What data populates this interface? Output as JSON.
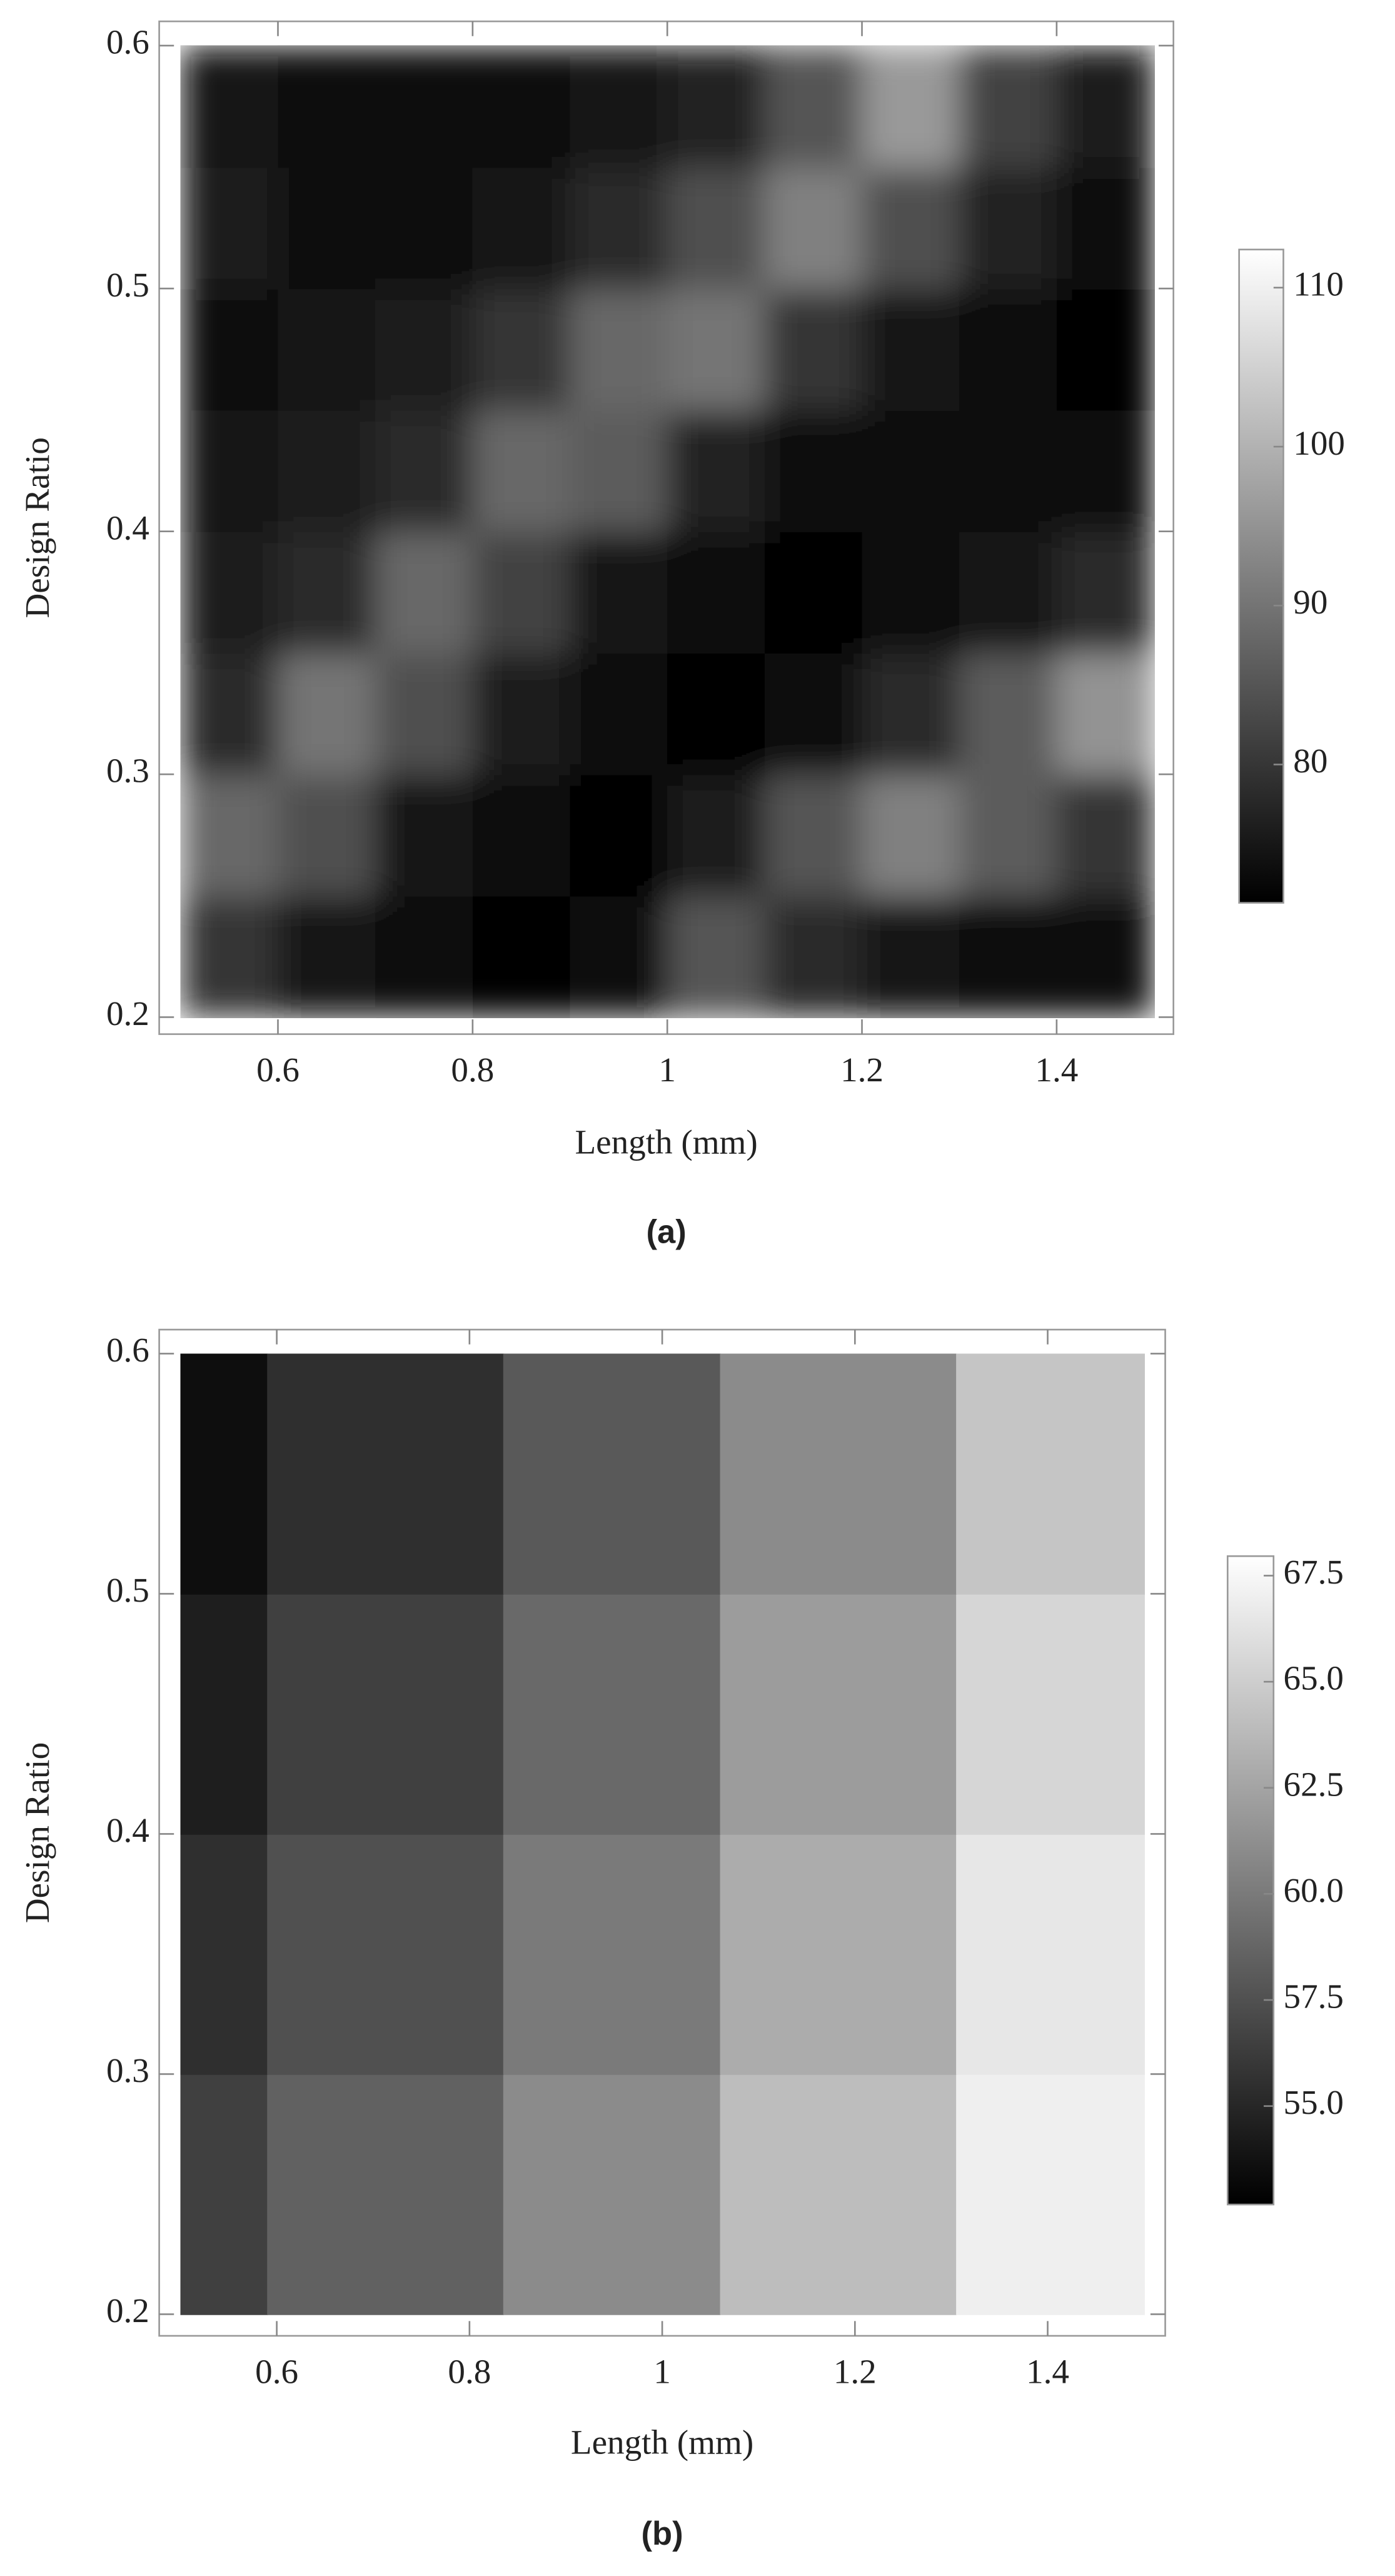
{
  "chart_data": [
    {
      "type": "heatmap",
      "colormap": "gray",
      "caption": "(a)",
      "xlabel": "Length (mm)",
      "ylabel": "Design Ratio",
      "xlim": [
        0.478,
        1.52
      ],
      "ylim": [
        0.193,
        0.61
      ],
      "xticks": [
        0.6,
        0.8,
        1,
        1.2,
        1.4
      ],
      "yticks": [
        0.2,
        0.3,
        0.4,
        0.5,
        0.6
      ],
      "xbins": [
        0.5,
        0.6,
        0.7,
        0.8,
        0.9,
        1.0,
        1.1,
        1.2,
        1.3,
        1.4,
        1.5
      ],
      "ybins": [
        0.2,
        0.25,
        0.3,
        0.35,
        0.4,
        0.45,
        0.5,
        0.55,
        0.6
      ],
      "z": [
        [
          80,
          75,
          73,
          72,
          74,
          85,
          78,
          75,
          73,
          73
        ],
        [
          88,
          84,
          75,
          73,
          72,
          76,
          85,
          92,
          86,
          80
        ],
        [
          78,
          90,
          84,
          76,
          73,
          72,
          74,
          78,
          86,
          95
        ],
        [
          76,
          78,
          88,
          82,
          75,
          73,
          72,
          73,
          75,
          78
        ],
        [
          75,
          76,
          78,
          88,
          86,
          77,
          74,
          73,
          73,
          74
        ],
        [
          74,
          75,
          76,
          80,
          88,
          90,
          80,
          75,
          73,
          72
        ],
        [
          76,
          74,
          74,
          75,
          78,
          84,
          92,
          84,
          77,
          74
        ],
        [
          75,
          74,
          73,
          74,
          75,
          77,
          85,
          96,
          82,
          76
        ]
      ],
      "zlim": [
        71.3,
        112.4
      ],
      "zticks": [
        80,
        90,
        100,
        110
      ]
    },
    {
      "type": "heatmap",
      "colormap": "gray",
      "caption": "(b)",
      "xlabel": "Length (mm)",
      "ylabel": "Design Ratio",
      "xlim": [
        0.478,
        1.522
      ],
      "ylim": [
        0.191,
        0.61
      ],
      "xticks": [
        0.6,
        0.8,
        1,
        1.2,
        1.4
      ],
      "yticks": [
        0.2,
        0.3,
        0.4,
        0.5,
        0.6
      ],
      "xbins": [
        0.5,
        0.59,
        0.835,
        1.06,
        1.305,
        1.5
      ],
      "ybins": [
        0.2,
        0.3,
        0.4,
        0.5,
        0.6
      ],
      "z": [
        [
          56.5,
          58.5,
          61,
          64,
          67
        ],
        [
          55.5,
          57.5,
          60,
          63,
          66.5
        ],
        [
          54.5,
          56.5,
          59,
          62,
          65.5
        ],
        [
          53.5,
          55.5,
          58,
          61,
          64.5
        ]
      ],
      "zlim": [
        52.68,
        67.96
      ],
      "zticks": [
        {
          "value": 55,
          "label": "55.0"
        },
        57.5,
        {
          "value": 60,
          "label": "60.0"
        },
        62.5,
        {
          "value": 65,
          "label": "65.0"
        },
        67.5
      ]
    }
  ]
}
